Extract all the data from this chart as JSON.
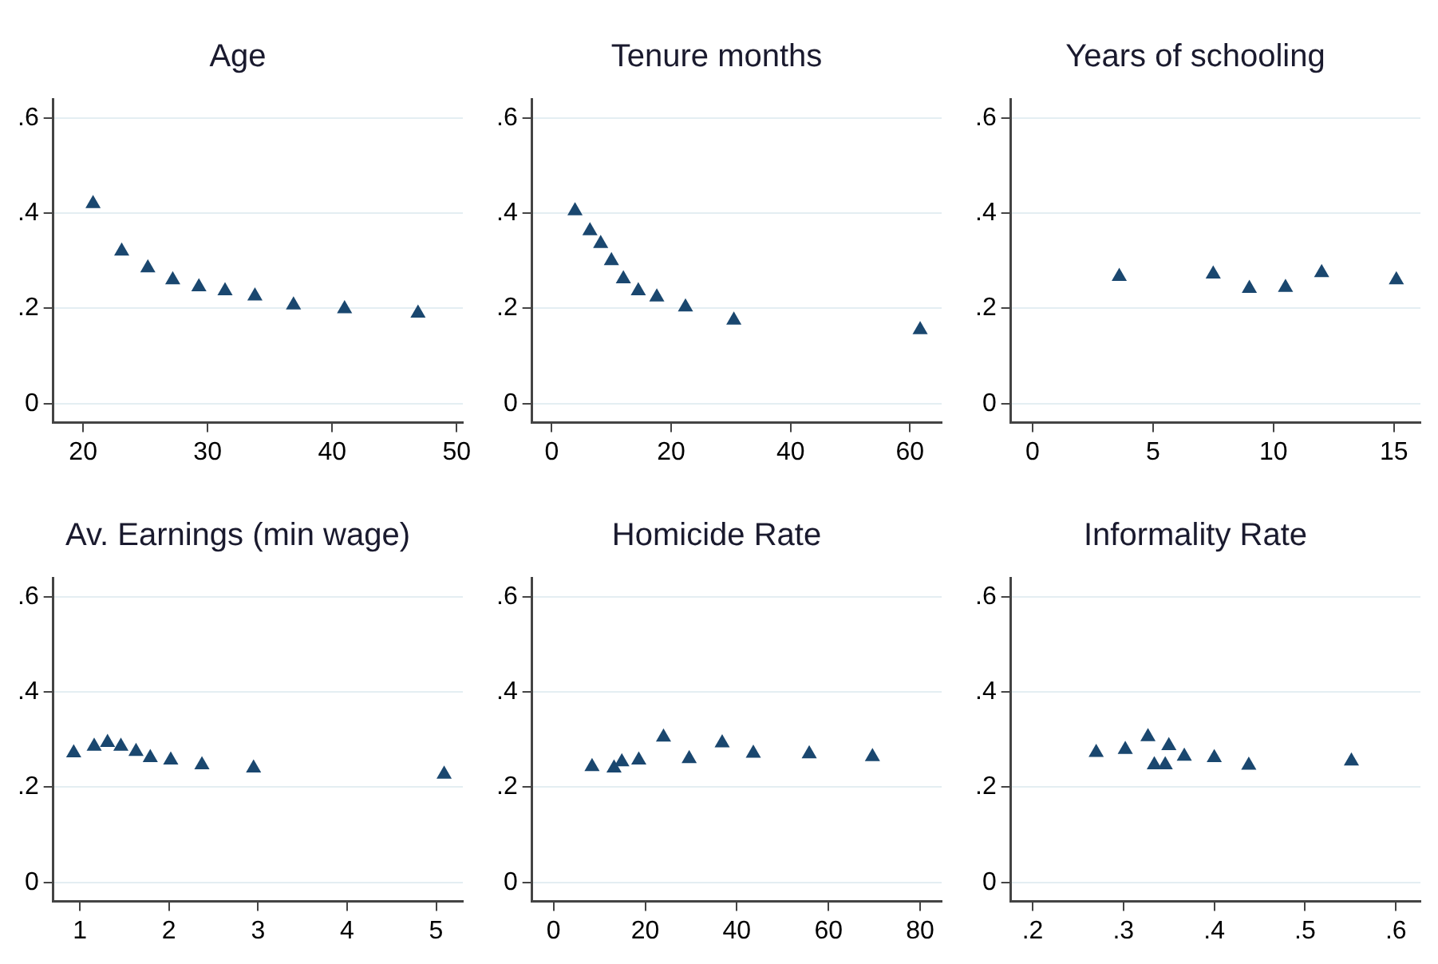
{
  "chart_data": [
    {
      "type": "scatter",
      "title": "Age",
      "marker": "triangle",
      "color": "#1a476f",
      "grid": "y",
      "x": [
        20.8,
        23.1,
        25.2,
        27.2,
        29.3,
        31.4,
        33.8,
        36.9,
        41.0,
        46.9
      ],
      "values": [
        0.42,
        0.32,
        0.285,
        0.26,
        0.245,
        0.237,
        0.226,
        0.207,
        0.199,
        0.19
      ],
      "xlim": [
        17.6,
        50.5
      ],
      "xticks": [
        20,
        30,
        40,
        50
      ],
      "ylim": [
        -0.04,
        0.64
      ],
      "yticks": [
        {
          "value": 0,
          "label": "0"
        },
        {
          "value": 0.2,
          "label": ".2"
        },
        {
          "value": 0.4,
          "label": ".4"
        },
        {
          "value": 0.6,
          "label": ".6"
        }
      ]
    },
    {
      "type": "scatter",
      "title": "Tenure months",
      "marker": "triangle",
      "color": "#1a476f",
      "grid": "y",
      "x": [
        3.9,
        6.4,
        8.2,
        10.0,
        12.0,
        14.5,
        17.6,
        22.4,
        30.5,
        61.7
      ],
      "values": [
        0.405,
        0.363,
        0.336,
        0.3,
        0.262,
        0.237,
        0.224,
        0.203,
        0.175,
        0.155
      ],
      "xlim": [
        -3.3,
        65.3
      ],
      "xticks": [
        0,
        20,
        40,
        60
      ],
      "ylim": [
        -0.04,
        0.64
      ],
      "yticks": [
        {
          "value": 0,
          "label": "0"
        },
        {
          "value": 0.2,
          "label": ".2"
        },
        {
          "value": 0.4,
          "label": ".4"
        },
        {
          "value": 0.6,
          "label": ".6"
        }
      ]
    },
    {
      "type": "scatter",
      "title": "Years of schooling",
      "marker": "triangle",
      "color": "#1a476f",
      "grid": "y",
      "x": [
        3.6,
        7.5,
        9.0,
        10.5,
        12.0,
        15.1
      ],
      "values": [
        0.267,
        0.272,
        0.242,
        0.244,
        0.275,
        0.26
      ],
      "xlim": [
        -0.9,
        16.1
      ],
      "xticks": [
        0,
        5,
        10,
        15
      ],
      "ylim": [
        -0.04,
        0.64
      ],
      "yticks": [
        {
          "value": 0,
          "label": "0"
        },
        {
          "value": 0.2,
          "label": ".2"
        },
        {
          "value": 0.4,
          "label": ".4"
        },
        {
          "value": 0.6,
          "label": ".6"
        }
      ]
    },
    {
      "type": "scatter",
      "title": "Av. Earnings (min wage)",
      "marker": "triangle",
      "color": "#1a476f",
      "grid": "y",
      "x": [
        0.93,
        1.16,
        1.31,
        1.46,
        1.63,
        1.79,
        2.02,
        2.37,
        2.95,
        5.09
      ],
      "values": [
        0.272,
        0.286,
        0.294,
        0.286,
        0.275,
        0.262,
        0.257,
        0.247,
        0.24,
        0.227
      ],
      "xlim": [
        0.7,
        5.3
      ],
      "xticks": [
        1,
        2,
        3,
        4,
        5
      ],
      "ylim": [
        -0.04,
        0.64
      ],
      "yticks": [
        {
          "value": 0,
          "label": "0"
        },
        {
          "value": 0.2,
          "label": ".2"
        },
        {
          "value": 0.4,
          "label": ".4"
        },
        {
          "value": 0.6,
          "label": ".6"
        }
      ]
    },
    {
      "type": "scatter",
      "title": "Homicide Rate",
      "marker": "triangle",
      "color": "#1a476f",
      "grid": "y",
      "x": [
        8.4,
        13.2,
        14.9,
        18.6,
        24.0,
        29.6,
        36.8,
        43.6,
        55.8,
        69.6
      ],
      "values": [
        0.243,
        0.24,
        0.253,
        0.257,
        0.305,
        0.26,
        0.293,
        0.271,
        0.27,
        0.264
      ],
      "xlim": [
        -4.7,
        84.7
      ],
      "xticks": [
        0,
        20,
        40,
        60,
        80
      ],
      "ylim": [
        -0.04,
        0.64
      ],
      "yticks": [
        {
          "value": 0,
          "label": "0"
        },
        {
          "value": 0.2,
          "label": ".2"
        },
        {
          "value": 0.4,
          "label": ".4"
        },
        {
          "value": 0.6,
          "label": ".6"
        }
      ]
    },
    {
      "type": "scatter",
      "title": "Informality Rate",
      "marker": "triangle",
      "color": "#1a476f",
      "grid": "y",
      "x": [
        0.27,
        0.302,
        0.327,
        0.334,
        0.346,
        0.35,
        0.367,
        0.4,
        0.438,
        0.551
      ],
      "values": [
        0.273,
        0.279,
        0.306,
        0.247,
        0.247,
        0.287,
        0.265,
        0.262,
        0.246,
        0.255
      ],
      "xlim": [
        0.176,
        0.627
      ],
      "xticks": [
        {
          "value": 0.2,
          "label": ".2"
        },
        {
          "value": 0.3,
          "label": ".3"
        },
        {
          "value": 0.4,
          "label": ".4"
        },
        {
          "value": 0.5,
          "label": ".5"
        },
        {
          "value": 0.6,
          "label": ".6"
        }
      ],
      "ylim": [
        -0.04,
        0.64
      ],
      "yticks": [
        {
          "value": 0,
          "label": "0"
        },
        {
          "value": 0.2,
          "label": ".2"
        },
        {
          "value": 0.4,
          "label": ".4"
        },
        {
          "value": 0.6,
          "label": ".6"
        }
      ]
    }
  ]
}
